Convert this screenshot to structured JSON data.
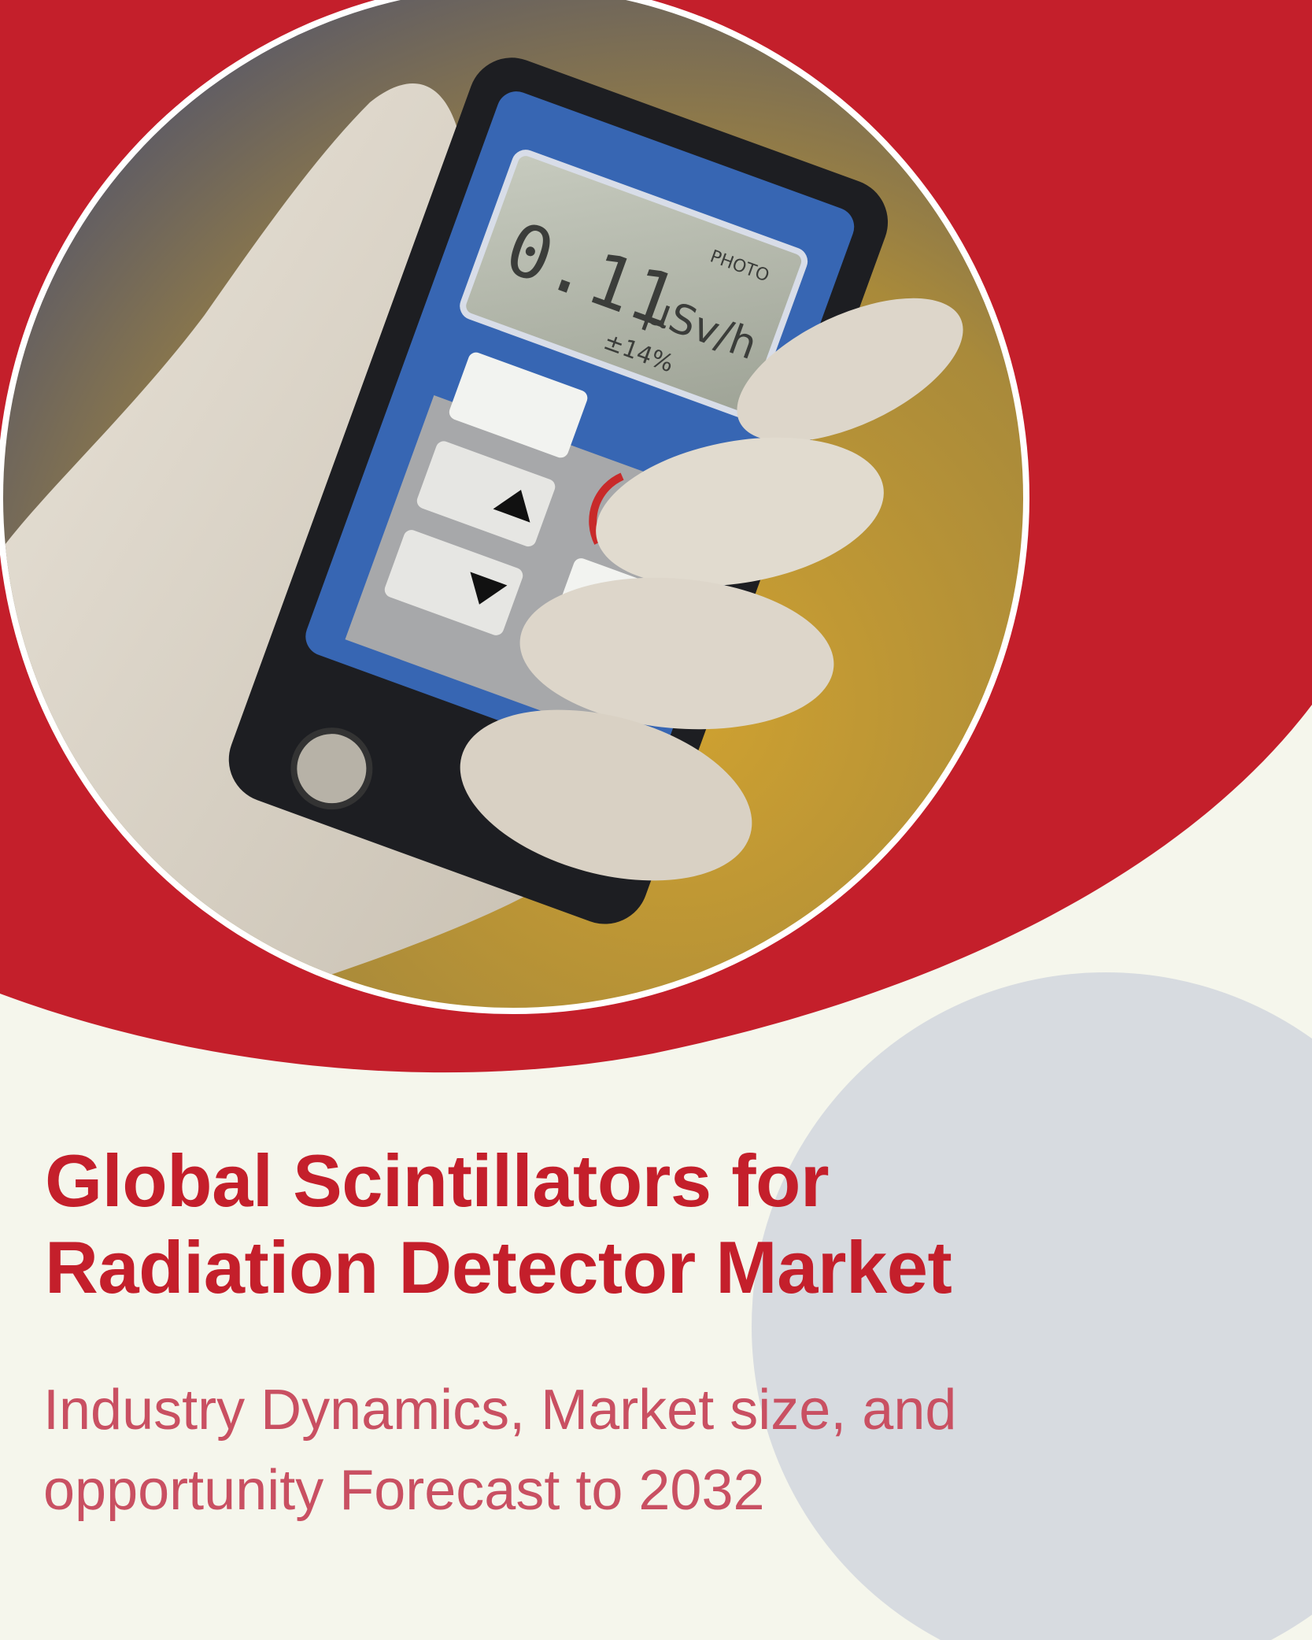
{
  "cover": {
    "title_lines": [
      "Global Scintillators for",
      "Radiation Detector Market"
    ],
    "subtitle_lines": [
      "Industry Dynamics, Market size, and",
      "opportunity Forecast to 2032"
    ]
  },
  "device": {
    "display_reading": "0.11",
    "display_unit": "μSv/h",
    "display_sub": "±14%",
    "display_corner": "PHOTO"
  },
  "colors": {
    "brand_red": "#c41f2b",
    "subtitle_red": "#c95062",
    "background_cream": "#f5f6ec",
    "accent_grey": "#d7dbe0",
    "device_blue": "#3766b3"
  }
}
